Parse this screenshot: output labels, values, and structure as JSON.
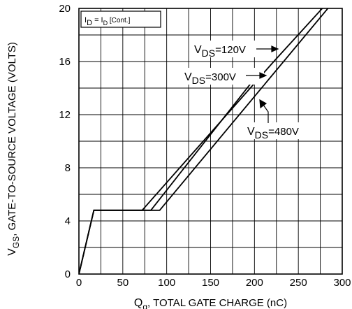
{
  "chart_data": {
    "type": "line",
    "xlabel": {
      "base": "Q",
      "sub": "g",
      "rest": ", TOTAL GATE CHARGE (nC)"
    },
    "ylabel": {
      "base": "V",
      "sub": "GS",
      "rest": ", GATE-TO-SOURCE VOLTAGE (VOLTS)"
    },
    "xlim": [
      0,
      300
    ],
    "ylim": [
      0,
      20
    ],
    "x_ticks": [
      0,
      50,
      100,
      150,
      200,
      250,
      300
    ],
    "y_ticks": [
      0,
      4,
      8,
      12,
      16,
      20
    ],
    "grid": true,
    "condition_box": {
      "p1": "I",
      "s1": "D",
      "p2": " = I",
      "s2": "D",
      "p3": " [Cont.]"
    },
    "series": [
      {
        "name": {
          "base": "V",
          "sub": "DS",
          "rest": "=120V"
        },
        "points": [
          [
            0,
            0
          ],
          [
            17,
            4.8
          ],
          [
            72,
            4.8
          ],
          [
            222,
            16.0
          ],
          [
            298,
            21.5
          ]
        ]
      },
      {
        "name": {
          "base": "V",
          "sub": "DS",
          "rest": "=300V"
        },
        "points": [
          [
            0,
            0
          ],
          [
            17,
            4.8
          ],
          [
            82,
            4.8
          ],
          [
            200,
            14.7
          ]
        ]
      },
      {
        "name": {
          "base": "V",
          "sub": "DS",
          "rest": "=480V"
        },
        "points": [
          [
            0,
            0
          ],
          [
            17,
            4.8
          ],
          [
            92,
            4.8
          ],
          [
            290,
            20.5
          ]
        ]
      }
    ],
    "colors": {
      "line": "#000000",
      "grid": "#000000",
      "background": "#ffffff"
    }
  }
}
